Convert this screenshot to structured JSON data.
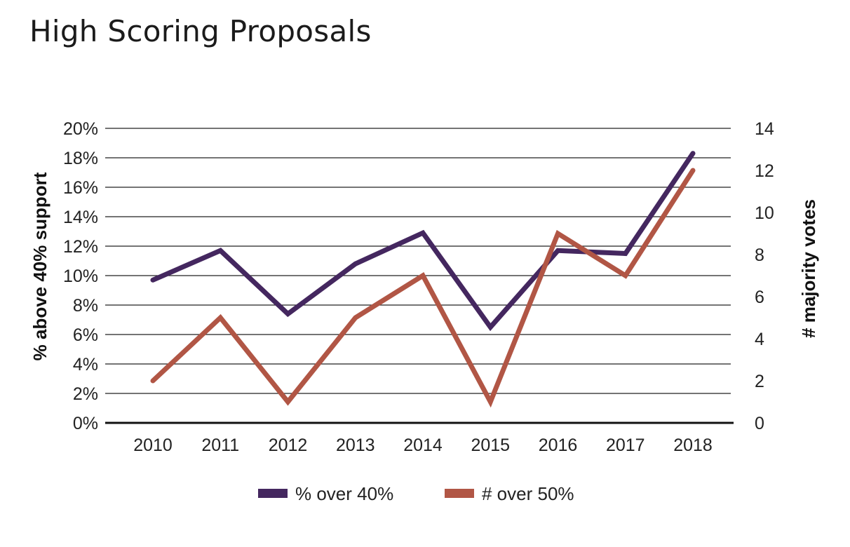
{
  "chart_data": {
    "type": "line",
    "title": "High Scoring Proposals",
    "categories": [
      "2010",
      "2011",
      "2012",
      "2013",
      "2014",
      "2015",
      "2016",
      "2017",
      "2018"
    ],
    "y_left": {
      "label": "% above 40% support",
      "range": [
        0,
        20
      ],
      "ticks": [
        "0%",
        "2%",
        "4%",
        "6%",
        "8%",
        "10%",
        "12%",
        "14%",
        "16%",
        "18%",
        "20%"
      ]
    },
    "y_right": {
      "label": "# majority votes",
      "range": [
        0,
        14
      ],
      "ticks": [
        "0",
        "2",
        "4",
        "6",
        "8",
        "10",
        "12",
        "14"
      ]
    },
    "series": [
      {
        "name": "% over 40%",
        "axis": "left",
        "color": "#44275f",
        "values": [
          9.7,
          11.7,
          7.4,
          10.8,
          12.9,
          6.5,
          11.7,
          11.5,
          18.3
        ]
      },
      {
        "name": "# over 50%",
        "axis": "right",
        "color": "#b15645",
        "values": [
          2,
          5,
          1,
          5,
          7,
          1,
          9,
          7,
          12
        ]
      }
    ],
    "grid": true,
    "legend_position": "bottom"
  }
}
